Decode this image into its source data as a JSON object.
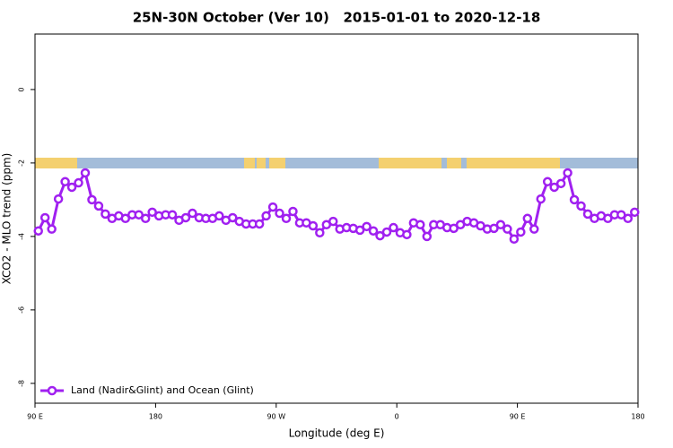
{
  "chart_data": {
    "type": "line",
    "title": "25N-30N October (Ver 10)   2015-01-01 to 2020-12-18",
    "x_label": "Longitude (deg E)",
    "y_label": "XCO2 - MLO trend (ppm)",
    "x": [
      92.5,
      97.5,
      102.5,
      107.5,
      112.5,
      117.5,
      122.5,
      127.5,
      132.5,
      137.5,
      142.5,
      147.5,
      152.5,
      157.5,
      162.5,
      167.5,
      172.5,
      177.5,
      182.5,
      187.5,
      192.5,
      197.5,
      202.5,
      207.5,
      212.5,
      217.5,
      222.5,
      227.5,
      232.5,
      237.5,
      242.5,
      247.5,
      252.5,
      257.5,
      262.5,
      267.5,
      272.5,
      277.5,
      282.5,
      287.5,
      292.5,
      297.5,
      302.5,
      307.5,
      312.5,
      317.5,
      322.5,
      327.5,
      332.5,
      337.5,
      342.5,
      347.5,
      352.5,
      357.5,
      362.5,
      367.5,
      372.5,
      377.5,
      382.5,
      387.5,
      392.5,
      397.5,
      402.5,
      407.5,
      412.5,
      417.5,
      422.5,
      427.5,
      432.5,
      437.5,
      442.5,
      447.5,
      452.5,
      457.5,
      462.5,
      467.5,
      472.5,
      477.5,
      482.5,
      487.5,
      492.5,
      497.5,
      502.5,
      507.5,
      512.5,
      517.5,
      522.5,
      527.5,
      532.5,
      537.5
    ],
    "series": [
      {
        "name": "Land (Nadir&Glint) and Ocean (Glint)",
        "color": "#a020f0",
        "values": [
          -3.85,
          -3.49,
          -3.8,
          -2.98,
          -2.51,
          -2.66,
          -2.54,
          -2.27,
          -3.0,
          -3.17,
          -3.39,
          -3.51,
          -3.44,
          -3.51,
          -3.41,
          -3.41,
          -3.51,
          -3.34,
          -3.44,
          -3.41,
          -3.41,
          -3.56,
          -3.49,
          -3.37,
          -3.49,
          -3.51,
          -3.51,
          -3.44,
          -3.56,
          -3.49,
          -3.59,
          -3.66,
          -3.66,
          -3.66,
          -3.44,
          -3.2,
          -3.37,
          -3.51,
          -3.32,
          -3.63,
          -3.63,
          -3.71,
          -3.9,
          -3.68,
          -3.59,
          -3.8,
          -3.76,
          -3.78,
          -3.83,
          -3.73,
          -3.85,
          -3.98,
          -3.88,
          -3.76,
          -3.9,
          -3.95,
          -3.63,
          -3.68,
          -4.0,
          -3.68,
          -3.68,
          -3.76,
          -3.78,
          -3.68,
          -3.59,
          -3.63,
          -3.71,
          -3.8,
          -3.78,
          -3.68,
          -3.8,
          -4.07,
          -3.88,
          -3.51,
          -3.8,
          -2.98,
          -2.51,
          -2.66,
          -2.56,
          -2.27,
          -3.0,
          -3.17,
          -3.39,
          -3.51,
          -3.44,
          -3.51,
          -3.41,
          -3.41,
          -3.51,
          -3.34
        ]
      }
    ],
    "xlim": [
      90,
      540
    ],
    "xticks": [
      {
        "value": 90,
        "label": "90 E"
      },
      180,
      {
        "value": 270,
        "label": "90 W"
      },
      {
        "value": 360,
        "label": "0"
      },
      {
        "value": 450,
        "label": "90 E"
      },
      {
        "value": 540,
        "label": "180"
      }
    ],
    "ylim": [
      -8.54,
      1.51
    ],
    "yticks": [
      0,
      -2,
      -4,
      -6,
      -8
    ],
    "grid": false,
    "legend": "bottom-left"
  }
}
